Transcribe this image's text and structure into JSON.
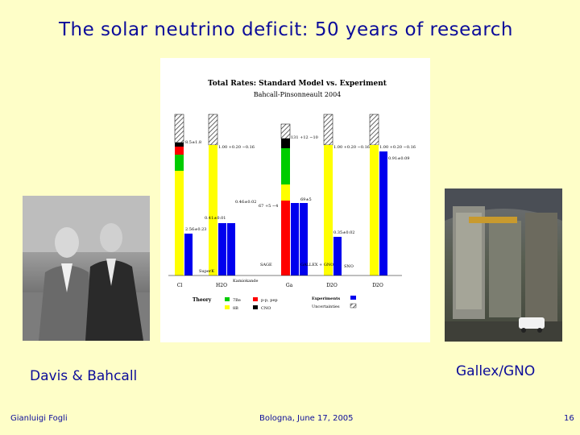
{
  "slide": {
    "title": "The solar neutrino deficit: 50 years of research",
    "caption_left": "Davis & Bahcall",
    "caption_right": "Gallex/GNO",
    "footer_left": "Gianluigi Fogli",
    "footer_center": "Bologna, June 17, 2005",
    "footer_right": "16"
  },
  "figure": {
    "title": "Total Rates: Standard Model vs. Experiment",
    "subtitle": "Bahcall-Pinsonneault 2004",
    "experiment_labels": [
      "Kamiokande",
      "SuperK",
      "SAGE",
      "GALLEX + GNO",
      "SNO"
    ],
    "x_labels": [
      "Cl",
      "H2O",
      "Ga",
      "D2O",
      "D2O"
    ],
    "legend": {
      "theory_heading": "Theory",
      "experiments_heading": "Experiments",
      "uncertainties_label": "Uncertainties",
      "items": [
        {
          "label": "7Be",
          "color": "#00cc00"
        },
        {
          "label": "p-p, pep",
          "color": "#ff0000"
        },
        {
          "label": "8B",
          "color": "#ffff00"
        },
        {
          "label": "CNO",
          "color": "#000000"
        }
      ]
    },
    "value_labels": [
      "8.5±1.8",
      "2.56±0.23",
      "1.00 +0.20 −0.16",
      "0.41±0.01",
      "0.46±0.02",
      "131 +12 −10",
      "67 +5 −4",
      "69±5",
      "1.00 +0.20 −0.16",
      "0.35±0.02",
      "1.00 +0.20 −0.16",
      "0.91±0.09"
    ],
    "colors": {
      "theory_8B": "#ffff00",
      "experiment": "#0000ee"
    }
  }
}
